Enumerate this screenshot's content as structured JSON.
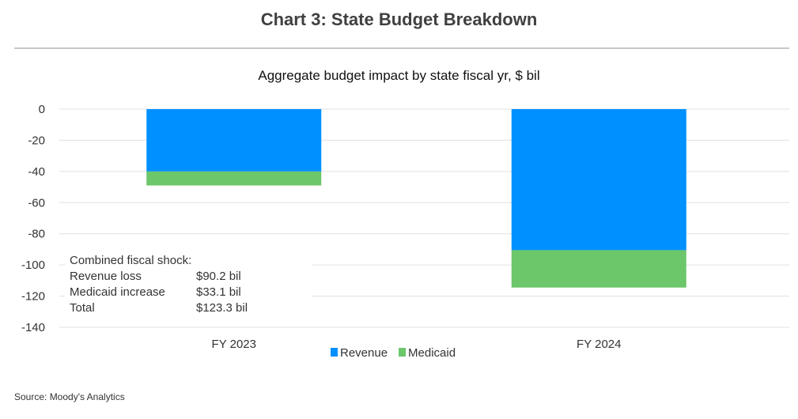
{
  "chart_data": {
    "type": "bar",
    "stacked": true,
    "title": "Chart 3: State Budget Breakdown",
    "subtitle": "Aggregate budget impact by state fiscal yr, $ bil",
    "categories": [
      "FY 2023",
      "FY 2024"
    ],
    "series": [
      {
        "name": "Revenue",
        "color": "#0090ff",
        "values": [
          -40,
          -90.5
        ]
      },
      {
        "name": "Medicaid",
        "color": "#6cc66a",
        "values": [
          -9,
          -24
        ]
      }
    ],
    "ylim": [
      -140,
      0
    ],
    "yticks": [
      0,
      -20,
      -40,
      -60,
      -80,
      -100,
      -120,
      -140
    ],
    "xlabel": "",
    "ylabel": "",
    "grid": true,
    "legend": "bottom-center",
    "annotation": {
      "heading": "Combined fiscal shock:",
      "rows": [
        {
          "label": "Revenue loss",
          "value": "$90.2 bil"
        },
        {
          "label": "Medicaid increase",
          "value": "$33.1 bil"
        },
        {
          "label": "Total",
          "value": "$123.3 bil"
        }
      ]
    },
    "source": "Source: Moody's Analytics"
  }
}
